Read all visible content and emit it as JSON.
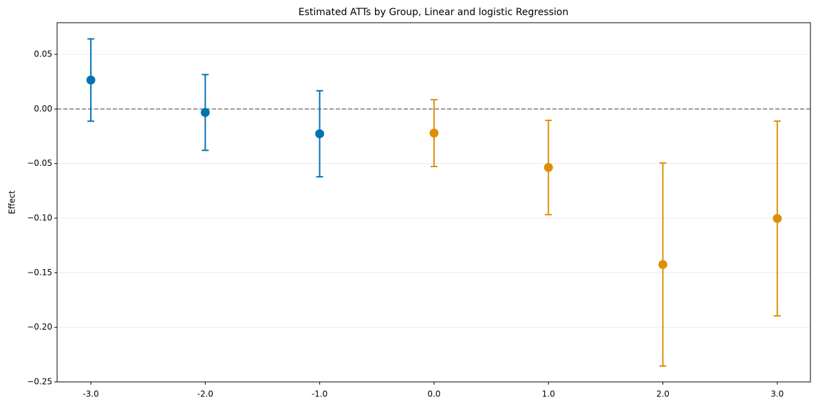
{
  "chart_data": {
    "type": "errorbar",
    "title": "Estimated ATTs by Group, Linear and logistic Regression",
    "ylabel": "Effect",
    "xlim": [
      -3.295,
      3.29
    ],
    "ylim": [
      -0.25,
      0.079
    ],
    "xticks": [
      {
        "value": -3,
        "label": "-3.0"
      },
      {
        "value": -2,
        "label": "-2.0"
      },
      {
        "value": -1,
        "label": "-1.0"
      },
      {
        "value": 0,
        "label": "0.0"
      },
      {
        "value": 1,
        "label": "1.0"
      },
      {
        "value": 2,
        "label": "2.0"
      },
      {
        "value": 3,
        "label": "3.0"
      }
    ],
    "yticks": [
      {
        "value": -0.25,
        "label": "−0.25"
      },
      {
        "value": -0.2,
        "label": "−0.20"
      },
      {
        "value": -0.15,
        "label": "−0.15"
      },
      {
        "value": -0.1,
        "label": "−0.10"
      },
      {
        "value": -0.05,
        "label": "−0.05"
      },
      {
        "value": 0,
        "label": "0.00"
      },
      {
        "value": 0.05,
        "label": "0.05"
      }
    ],
    "grid": true,
    "hline": 0,
    "series": [
      {
        "color": "#0173b2",
        "x": [
          -3,
          -2,
          -1
        ],
        "values": [
          0.0265,
          -0.0032,
          -0.0227
        ],
        "errors": [
          0.0377,
          0.0347,
          0.0394
        ]
      },
      {
        "color": "#de8f05",
        "x": [
          0,
          1,
          2,
          3
        ],
        "values": [
          -0.0221,
          -0.0536,
          -0.1425,
          -0.1003
        ],
        "errors": [
          0.0306,
          0.0432,
          0.093,
          0.0892
        ]
      }
    ]
  }
}
